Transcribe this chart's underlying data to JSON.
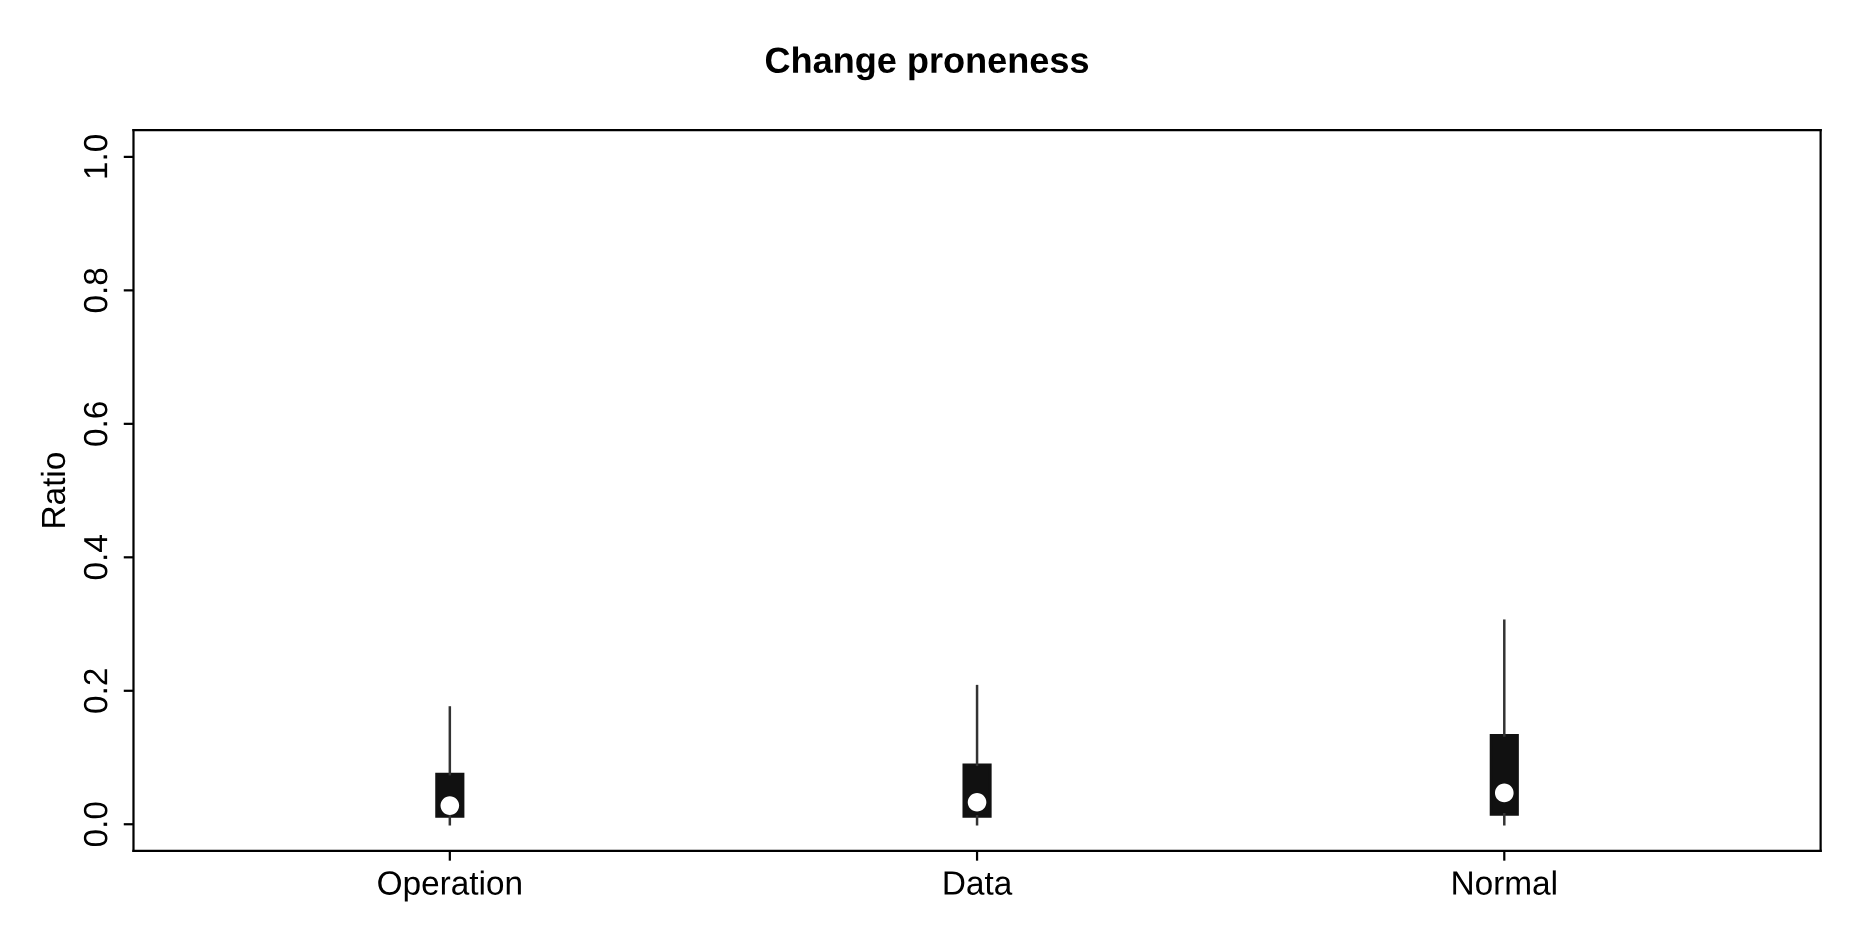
{
  "chart_data": {
    "type": "box",
    "title": "Change proneness",
    "ylabel": "Ratio",
    "categories": [
      "Operation",
      "Data",
      "Normal"
    ],
    "boxes": [
      {
        "low": 0.0,
        "q1": 0.012,
        "median": 0.028,
        "q3": 0.075,
        "high": 0.175
      },
      {
        "low": 0.0,
        "q1": 0.012,
        "median": 0.033,
        "q3": 0.089,
        "high": 0.207
      },
      {
        "low": 0.0,
        "q1": 0.015,
        "median": 0.047,
        "q3": 0.133,
        "high": 0.305
      }
    ],
    "color": "#111111",
    "ylim": [
      -0.04,
      1.04
    ],
    "yticks": [
      {
        "value": 0,
        "label": "0.0"
      },
      {
        "value": 0.2,
        "label": "0.2"
      },
      {
        "value": 0.4,
        "label": "0.4"
      },
      {
        "value": 0.6,
        "label": "0.6"
      },
      {
        "value": 0.8,
        "label": "0.8"
      },
      {
        "value": 1,
        "label": "1.0"
      }
    ],
    "grid": false
  }
}
